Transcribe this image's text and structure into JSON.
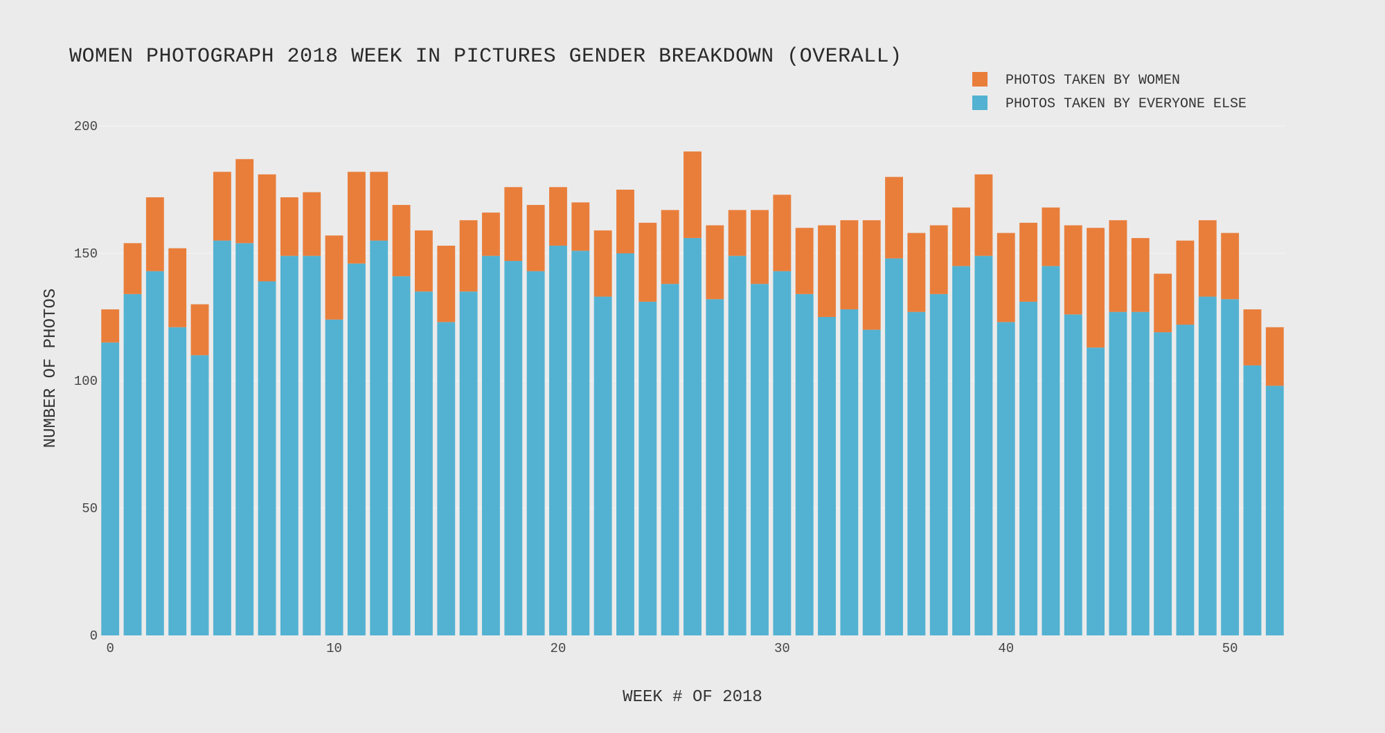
{
  "chart_data": {
    "type": "bar",
    "barmode": "stack",
    "title": "WOMEN PHOTOGRAPH 2018 WEEK IN PICTURES GENDER BREAKDOWN (OVERALL)",
    "xlabel": "WEEK # OF 2018",
    "ylabel": "NUMBER OF PHOTOS",
    "ylim": [
      0,
      200
    ],
    "xlim": [
      -0.5,
      52.5
    ],
    "yticks": [
      0,
      50,
      100,
      150,
      200
    ],
    "xticks": [
      0,
      10,
      20,
      30,
      40,
      50
    ],
    "grid": true,
    "legend_position": "top-right",
    "x": [
      0,
      1,
      2,
      3,
      4,
      5,
      6,
      7,
      8,
      9,
      10,
      11,
      12,
      13,
      14,
      15,
      16,
      17,
      18,
      19,
      20,
      21,
      22,
      23,
      24,
      25,
      26,
      27,
      28,
      29,
      30,
      31,
      32,
      33,
      34,
      35,
      36,
      37,
      38,
      39,
      40,
      41,
      42,
      43,
      44,
      45,
      46,
      47,
      48,
      49,
      50,
      51,
      52
    ],
    "series": [
      {
        "name": "PHOTOS TAKEN BY EVERYONE ELSE",
        "color": "#53b2d2",
        "values": [
          115,
          134,
          143,
          121,
          110,
          155,
          154,
          139,
          149,
          149,
          124,
          146,
          155,
          141,
          135,
          123,
          135,
          149,
          147,
          143,
          153,
          151,
          133,
          150,
          131,
          138,
          156,
          132,
          149,
          138,
          143,
          134,
          125,
          128,
          120,
          148,
          127,
          134,
          145,
          149,
          123,
          131,
          145,
          126,
          113,
          127,
          127,
          119,
          122,
          133,
          132,
          106,
          98
        ]
      },
      {
        "name": "PHOTOS TAKEN BY WOMEN",
        "color": "#e97e3b",
        "values": [
          13,
          20,
          29,
          31,
          20,
          27,
          33,
          42,
          23,
          25,
          33,
          36,
          27,
          28,
          24,
          30,
          28,
          17,
          29,
          26,
          23,
          19,
          26,
          25,
          31,
          29,
          34,
          29,
          18,
          29,
          30,
          26,
          36,
          35,
          43,
          32,
          31,
          27,
          23,
          32,
          35,
          31,
          23,
          35,
          47,
          36,
          29,
          23,
          33,
          30,
          26,
          22,
          23
        ]
      }
    ],
    "legend_order": [
      "PHOTOS TAKEN BY WOMEN",
      "PHOTOS TAKEN BY EVERYONE ELSE"
    ]
  }
}
